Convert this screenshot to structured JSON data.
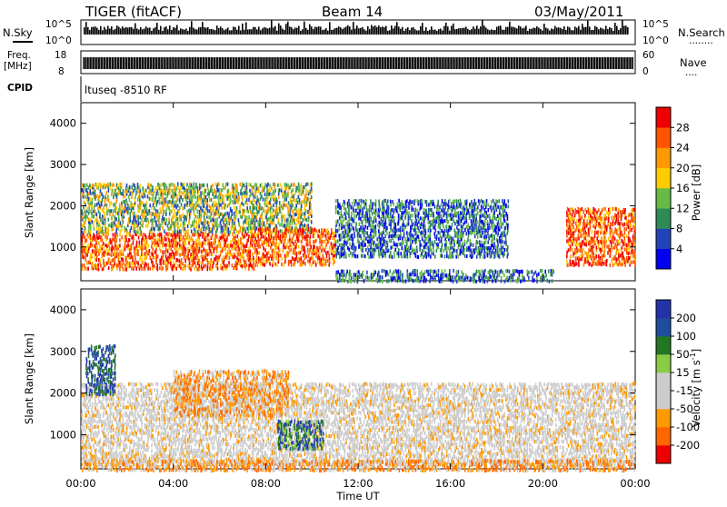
{
  "header": {
    "radar": "TIGER (fitACF)",
    "beam": "Beam 14",
    "date": "03/May/2011"
  },
  "strips": {
    "nsky_label": "N.Sky",
    "nsky_ticks": [
      "10^5",
      "10^0"
    ],
    "nsearch_label": "N.Search",
    "nsearch_dots": "........",
    "freq_label_1": "Freq.",
    "freq_label_2": "[MHz]",
    "freq_ticks": [
      "18",
      "8"
    ],
    "nave_label": "Nave",
    "nave_dots": "....",
    "nave_ticks": [
      "60",
      "0"
    ],
    "cpid_label": "CPID",
    "cpid_text": "ltuseq -8510 RF"
  },
  "colors": {
    "power": [
      "#0000ee",
      "#2244bb",
      "#2e8b57",
      "#66bb44",
      "#ffcc00",
      "#ff9900",
      "#ff5500",
      "#ee0000"
    ],
    "velocity": [
      "#2233aa",
      "#1e4d9e",
      "#227722",
      "#88cc44",
      "#cccccc",
      "#cccccc",
      "#ff9900",
      "#ff6600",
      "#ee0000"
    ]
  },
  "chart_data": [
    {
      "type": "heatmap",
      "name": "power",
      "ylabel": "Slant Range [km]",
      "xlabel": "Time UT",
      "ylim": [
        180,
        4500
      ],
      "yticks": [
        "1000",
        "2000",
        "3000",
        "4000"
      ],
      "xticks": [
        "00:00",
        "04:00",
        "08:00",
        "12:00",
        "16:00",
        "20:00",
        "00:00"
      ],
      "colorbar": {
        "label": "Power [dB]",
        "ticks": [
          "4",
          "8",
          "12",
          "16",
          "20",
          "24",
          "28"
        ],
        "range": [
          0,
          32
        ]
      },
      "bands": [
        {
          "t0": 0.0,
          "t1": 7.5,
          "r0": 500,
          "r1": 1400,
          "level": "high"
        },
        {
          "t0": 0.0,
          "t1": 10.0,
          "r0": 1400,
          "r1": 2600,
          "level": "medium"
        },
        {
          "t0": 7.5,
          "t1": 11.0,
          "r0": 600,
          "r1": 1500,
          "level": "high"
        },
        {
          "t0": 11.0,
          "t1": 18.5,
          "r0": 800,
          "r1": 2200,
          "level": "low"
        },
        {
          "t0": 11.0,
          "t1": 20.5,
          "r0": 200,
          "r1": 500,
          "level": "low"
        },
        {
          "t0": 21.0,
          "t1": 24.0,
          "r0": 600,
          "r1": 2000,
          "level": "high"
        }
      ]
    },
    {
      "type": "heatmap",
      "name": "velocity",
      "ylabel": "Slant Range [km]",
      "xlabel": "Time UT",
      "ylim": [
        180,
        4500
      ],
      "yticks": [
        "1000",
        "2000",
        "3000",
        "4000"
      ],
      "xticks": [
        "00:00",
        "04:00",
        "08:00",
        "12:00",
        "16:00",
        "20:00",
        "00:00"
      ],
      "colorbar": {
        "label": "Velocity [m s^-1]",
        "ticks": [
          "200",
          "100",
          "50",
          "15",
          "-15",
          "-50",
          "-100",
          "-200"
        ]
      },
      "bands": [
        {
          "t0": 0.0,
          "t1": 24.0,
          "r0": 300,
          "r1": 2300,
          "level": "near-zero"
        },
        {
          "t0": 0.2,
          "t1": 1.5,
          "r0": 2000,
          "r1": 3200,
          "level": "positive"
        },
        {
          "t0": 4.0,
          "t1": 9.0,
          "r0": 1500,
          "r1": 2600,
          "level": "negative"
        },
        {
          "t0": 8.5,
          "t1": 10.5,
          "r0": 700,
          "r1": 1400,
          "level": "strong-positive"
        },
        {
          "t0": 0.0,
          "t1": 24.0,
          "r0": 180,
          "r1": 450,
          "level": "negative"
        }
      ]
    }
  ]
}
